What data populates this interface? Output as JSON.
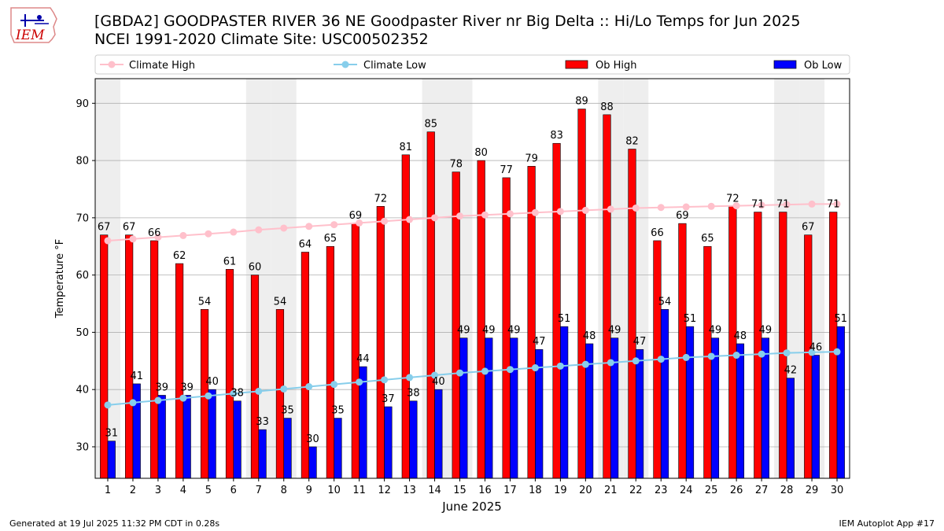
{
  "header": {
    "logo_text": "IEM",
    "title_line1": "[GBDA2] GOODPASTER RIVER 36 NE Goodpaster River nr Big Delta :: Hi/Lo Temps for Jun 2025",
    "title_line2": "NCEI 1991-2020 Climate Site: USC00502352"
  },
  "footer": {
    "generated": "Generated at 19 Jul 2025 11:32 PM CDT in 0.28s",
    "app": "IEM Autoplot App #17"
  },
  "colors": {
    "ob_high": "#ff0000",
    "ob_low": "#0000ff",
    "climate_high": "#ffc0cb",
    "climate_low": "#87ceeb",
    "weekend_shade": "#eeeeee",
    "grid": "#b0b0b0"
  },
  "chart_data": {
    "type": "bar",
    "xlabel": "June 2025",
    "ylabel": "Temperature °F",
    "ylim": [
      24.5,
      94.3
    ],
    "yticks": [
      30,
      40,
      50,
      60,
      70,
      80,
      90
    ],
    "grid": "horizontal",
    "legend_placement": "top, above plot",
    "categories": [
      1,
      2,
      3,
      4,
      5,
      6,
      7,
      8,
      9,
      10,
      11,
      12,
      13,
      14,
      15,
      16,
      17,
      18,
      19,
      20,
      21,
      22,
      23,
      24,
      25,
      26,
      27,
      28,
      29,
      30
    ],
    "shaded_days": [
      1,
      7,
      8,
      14,
      15,
      21,
      22,
      28,
      29
    ],
    "series": [
      {
        "name": "Ob High",
        "kind": "bar",
        "values": [
          67,
          67,
          66,
          62,
          54,
          61,
          60,
          54,
          64,
          65,
          69,
          72,
          81,
          85,
          78,
          80,
          77,
          79,
          83,
          89,
          88,
          82,
          66,
          69,
          65,
          72,
          71,
          71,
          67,
          71
        ],
        "labels": [
          "67",
          "67",
          "66",
          "62",
          "54",
          "61",
          "60",
          "54",
          "64",
          "65",
          "69",
          "72",
          "81",
          "85",
          "78",
          "80",
          "77",
          "79",
          "83",
          "89",
          "88",
          "82",
          "66",
          "69",
          "65",
          "72",
          "71",
          "71",
          "67",
          "71"
        ]
      },
      {
        "name": "Ob Low",
        "kind": "bar",
        "values": [
          31,
          41,
          39,
          39,
          40,
          38,
          33,
          35,
          30,
          35,
          44,
          37,
          38,
          40,
          49,
          49,
          49,
          47,
          51,
          48,
          49,
          47,
          54,
          51,
          49,
          48,
          49,
          42,
          46,
          51
        ],
        "labels": [
          "31",
          "41",
          "39",
          "39",
          "40",
          "38",
          "33",
          "35",
          "30",
          "35",
          "44",
          "37",
          "38",
          "40",
          "49",
          "49",
          "49",
          "47",
          "51",
          "48",
          "49",
          "47",
          "54",
          "51",
          "49",
          "48",
          "49",
          "42",
          "46",
          "51"
        ]
      },
      {
        "name": "Climate High",
        "kind": "line",
        "values": [
          66.0,
          66.3,
          66.6,
          66.9,
          67.2,
          67.5,
          67.9,
          68.2,
          68.5,
          68.8,
          69.1,
          69.4,
          69.7,
          70.0,
          70.3,
          70.5,
          70.7,
          70.9,
          71.1,
          71.3,
          71.5,
          71.7,
          71.8,
          71.9,
          72.0,
          72.1,
          72.2,
          72.3,
          72.4,
          72.4
        ]
      },
      {
        "name": "Climate Low",
        "kind": "line",
        "values": [
          37.3,
          37.7,
          38.1,
          38.5,
          38.9,
          39.3,
          39.7,
          40.1,
          40.5,
          40.9,
          41.3,
          41.7,
          42.1,
          42.5,
          42.9,
          43.2,
          43.5,
          43.8,
          44.1,
          44.4,
          44.7,
          45.0,
          45.3,
          45.6,
          45.8,
          46.0,
          46.2,
          46.4,
          46.5,
          46.6
        ]
      }
    ]
  }
}
